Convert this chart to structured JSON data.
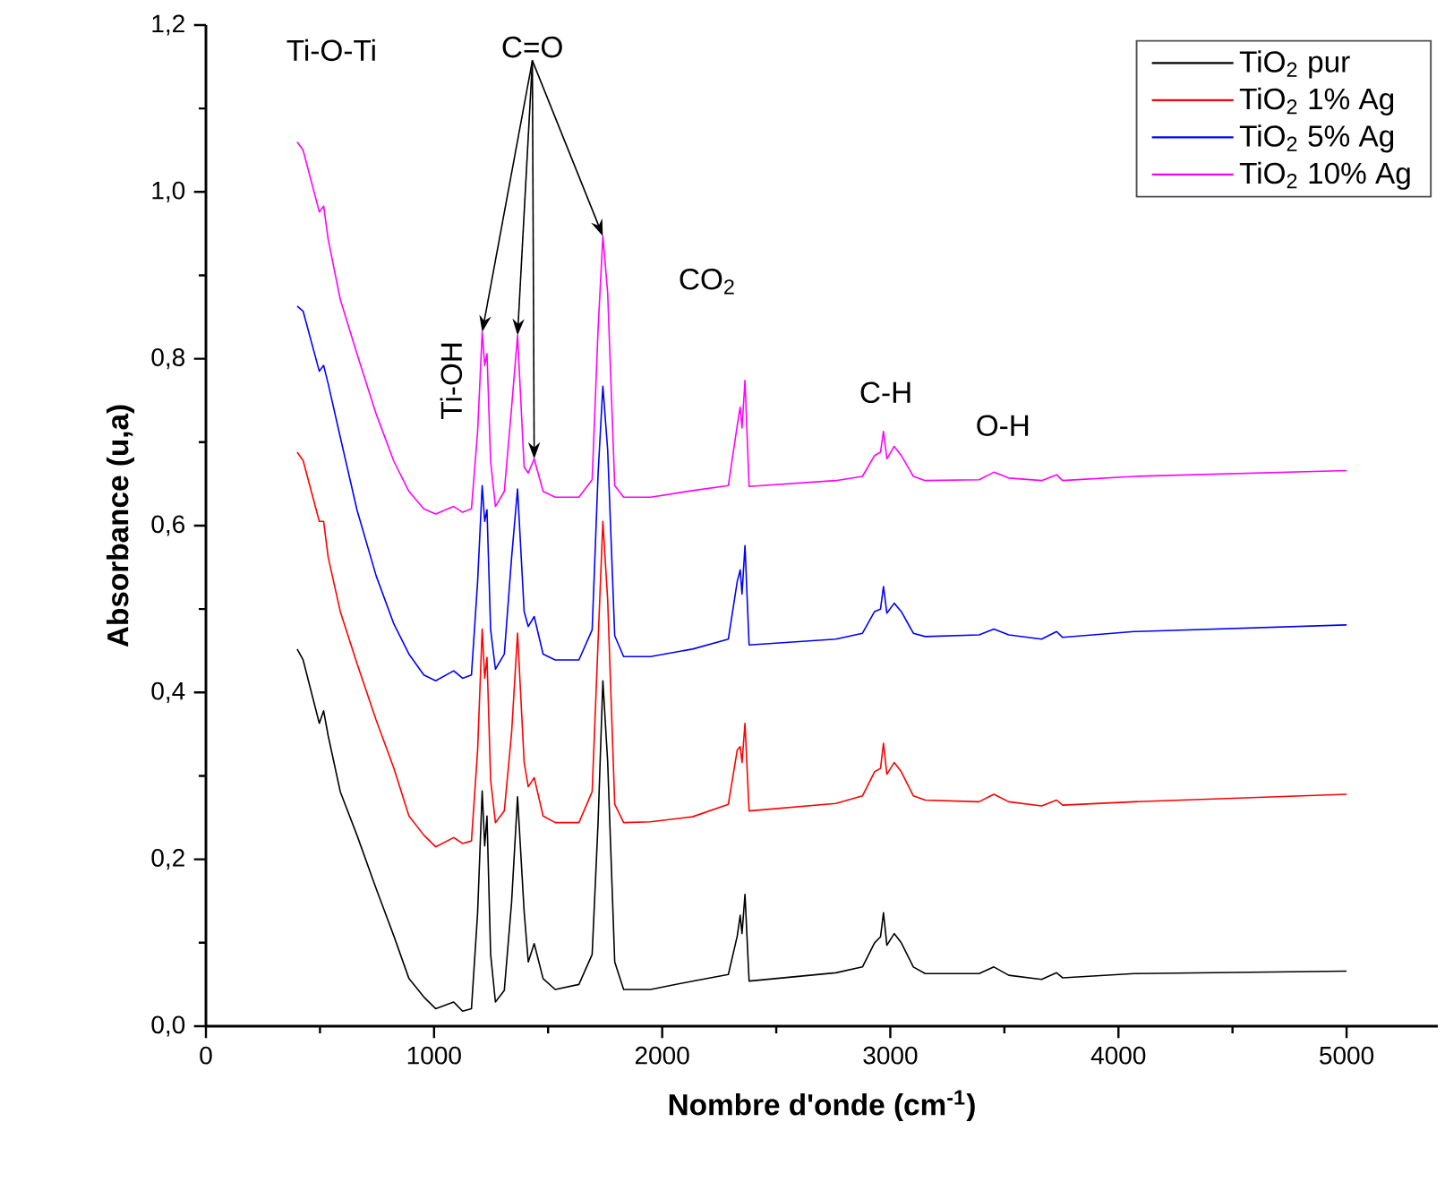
{
  "chart_data": {
    "type": "line",
    "xlabel": "Nombre d'onde (cm$^{-1}$)",
    "ylabel": "Absorbance (u,a)",
    "x": [
      400,
      426,
      497,
      516,
      536,
      589,
      662,
      746,
      824,
      890,
      955,
      1007,
      1086,
      1125,
      1164,
      1191,
      1211,
      1222,
      1232,
      1248,
      1269,
      1308,
      1340,
      1366,
      1395,
      1413,
      1439,
      1478,
      1531,
      1635,
      1693,
      1719,
      1740,
      1761,
      1792,
      1831,
      1949,
      2133,
      2290,
      2329,
      2342,
      2350,
      2363,
      2381,
      2761,
      2878,
      2931,
      2957,
      2970,
      2985,
      3017,
      3048,
      3101,
      3153,
      3389,
      3454,
      3519,
      3663,
      3729,
      3755,
      4069,
      5000
    ],
    "series": [
      {
        "name": "TiO$_{2}$ pur",
        "color": "#000000",
        "values": [
          0.452,
          0.439,
          0.363,
          0.378,
          0.348,
          0.281,
          0.229,
          0.165,
          0.108,
          0.057,
          0.035,
          0.021,
          0.029,
          0.018,
          0.021,
          0.136,
          0.282,
          0.216,
          0.252,
          0.086,
          0.029,
          0.043,
          0.149,
          0.275,
          0.137,
          0.077,
          0.099,
          0.057,
          0.044,
          0.05,
          0.086,
          0.244,
          0.414,
          0.317,
          0.077,
          0.044,
          0.044,
          0.054,
          0.062,
          0.108,
          0.133,
          0.111,
          0.158,
          0.054,
          0.064,
          0.071,
          0.1,
          0.107,
          0.136,
          0.097,
          0.111,
          0.1,
          0.071,
          0.063,
          0.063,
          0.071,
          0.061,
          0.056,
          0.064,
          0.058,
          0.063,
          0.066
        ]
      },
      {
        "name": "TiO$_{2}$ 1% Ag",
        "color": "#ff0000",
        "values": [
          0.688,
          0.678,
          0.605,
          0.605,
          0.562,
          0.497,
          0.435,
          0.367,
          0.309,
          0.252,
          0.229,
          0.215,
          0.226,
          0.219,
          0.222,
          0.331,
          0.476,
          0.417,
          0.442,
          0.295,
          0.244,
          0.258,
          0.352,
          0.471,
          0.316,
          0.287,
          0.298,
          0.252,
          0.244,
          0.244,
          0.281,
          0.461,
          0.605,
          0.511,
          0.266,
          0.244,
          0.245,
          0.251,
          0.266,
          0.331,
          0.335,
          0.316,
          0.363,
          0.258,
          0.267,
          0.276,
          0.305,
          0.309,
          0.339,
          0.302,
          0.316,
          0.305,
          0.276,
          0.271,
          0.269,
          0.278,
          0.269,
          0.264,
          0.271,
          0.265,
          0.269,
          0.278
        ]
      },
      {
        "name": "TiO$_{2}$ 5% Ag",
        "color": "#0000ff",
        "values": [
          0.863,
          0.857,
          0.785,
          0.792,
          0.77,
          0.706,
          0.619,
          0.54,
          0.482,
          0.446,
          0.421,
          0.414,
          0.426,
          0.417,
          0.421,
          0.533,
          0.648,
          0.605,
          0.619,
          0.475,
          0.428,
          0.446,
          0.562,
          0.644,
          0.497,
          0.479,
          0.491,
          0.446,
          0.439,
          0.439,
          0.475,
          0.662,
          0.767,
          0.691,
          0.468,
          0.443,
          0.443,
          0.452,
          0.464,
          0.533,
          0.547,
          0.518,
          0.576,
          0.457,
          0.464,
          0.471,
          0.497,
          0.5,
          0.527,
          0.495,
          0.507,
          0.497,
          0.471,
          0.467,
          0.469,
          0.476,
          0.469,
          0.464,
          0.473,
          0.466,
          0.473,
          0.481
        ]
      },
      {
        "name": "TiO$_{2}$ 10% Ag",
        "color": "#ff00ff",
        "values": [
          1.06,
          1.05,
          0.976,
          0.983,
          0.943,
          0.871,
          0.806,
          0.734,
          0.677,
          0.641,
          0.62,
          0.614,
          0.623,
          0.616,
          0.62,
          0.713,
          0.832,
          0.792,
          0.806,
          0.677,
          0.623,
          0.641,
          0.742,
          0.828,
          0.67,
          0.663,
          0.68,
          0.641,
          0.634,
          0.634,
          0.655,
          0.835,
          0.947,
          0.879,
          0.648,
          0.634,
          0.634,
          0.642,
          0.648,
          0.72,
          0.742,
          0.717,
          0.774,
          0.647,
          0.654,
          0.659,
          0.684,
          0.688,
          0.713,
          0.68,
          0.695,
          0.684,
          0.659,
          0.654,
          0.655,
          0.664,
          0.657,
          0.654,
          0.661,
          0.654,
          0.659,
          0.666
        ]
      }
    ],
    "xlim": [
      0,
      5400
    ],
    "xticks": [
      0,
      1000,
      2000,
      3000,
      4000,
      5000
    ],
    "ylim": [
      0,
      1.2
    ],
    "yticks": [
      {
        "value": 0,
        "label": "0,0"
      },
      {
        "value": 0.2,
        "label": "0,2"
      },
      {
        "value": 0.4,
        "label": "0,4"
      },
      {
        "value": 0.6,
        "label": "0,6"
      },
      {
        "value": 0.8,
        "label": "0,8"
      },
      {
        "value": 1.0,
        "label": "1,0"
      },
      {
        "value": 1.2,
        "label": "1,2"
      }
    ],
    "legend": "top right",
    "annotations": [
      "Ti-O-Ti",
      "Ti-OH",
      {
        "text": "C=O",
        "x": 1740,
        "y": 0.947
      },
      "CO$_{2}$",
      "C-H",
      "O-H"
    ]
  }
}
